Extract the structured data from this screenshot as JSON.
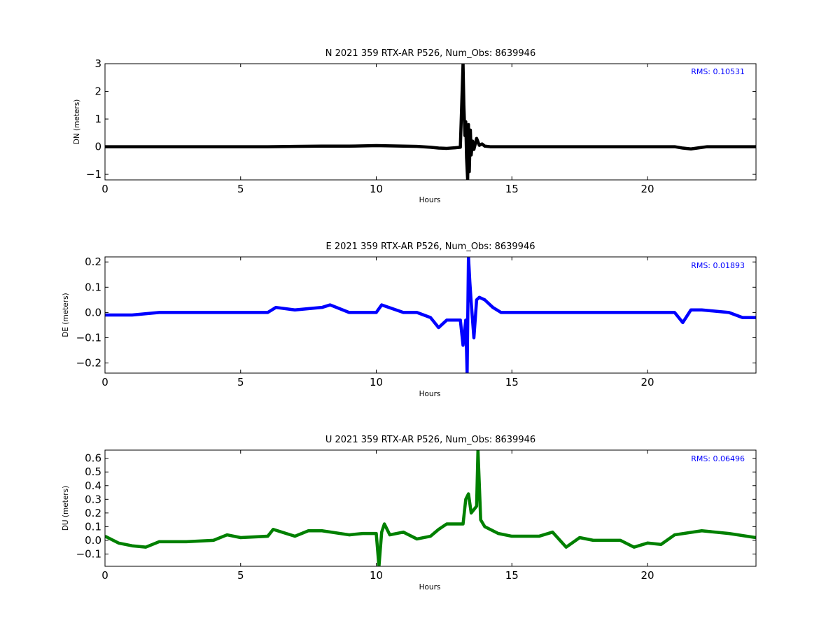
{
  "chart_data": [
    {
      "type": "line",
      "title": "N 2021 359 RTX-AR  P526, Num_Obs: 8639946",
      "xlabel": "Hours",
      "ylabel": "DN (meters)",
      "xlim": [
        0,
        24
      ],
      "ylim": [
        -1.2,
        3.0
      ],
      "xticks": [
        0,
        5,
        10,
        15,
        20
      ],
      "yticks": [
        -1,
        0,
        1,
        2,
        3
      ],
      "grid": false,
      "annotation": "RMS:  0.10531",
      "color": "#000000",
      "series": [
        {
          "x": [
            0,
            1,
            2,
            3,
            4,
            5,
            6,
            7,
            8,
            9,
            10,
            10.5,
            11,
            11.5,
            12,
            12.3,
            12.6,
            12.9,
            13.1,
            13.2,
            13.23,
            13.27,
            13.3,
            13.33,
            13.37,
            13.4,
            13.43,
            13.47,
            13.5,
            13.55,
            13.6,
            13.7,
            13.8,
            13.9,
            14,
            14.2,
            14.5,
            15,
            16,
            17,
            18,
            19,
            20,
            21,
            21.3,
            21.6,
            21.9,
            22.2,
            23,
            24
          ],
          "y": [
            0.0,
            0.0,
            0.0,
            0.0,
            0.0,
            0.0,
            0.0,
            0.01,
            0.02,
            0.02,
            0.04,
            0.03,
            0.02,
            0.01,
            -0.02,
            -0.05,
            -0.06,
            -0.04,
            -0.02,
            3.0,
            1.5,
            0.4,
            0.9,
            -0.4,
            -1.2,
            0.8,
            -0.9,
            0.6,
            -0.3,
            0.2,
            -0.1,
            0.3,
            0.05,
            0.1,
            0.02,
            0.0,
            0.0,
            0.0,
            0.0,
            0.0,
            0.0,
            0.0,
            0.0,
            0.0,
            -0.05,
            -0.08,
            -0.04,
            0.0,
            0.0,
            0.0
          ]
        }
      ]
    },
    {
      "type": "line",
      "title": "E 2021 359 RTX-AR  P526, Num_Obs: 8639946",
      "xlabel": "Hours",
      "ylabel": "DE (meters)",
      "xlim": [
        0,
        24
      ],
      "ylim": [
        -0.24,
        0.22
      ],
      "xticks": [
        0,
        5,
        10,
        15,
        20
      ],
      "yticks": [
        -0.2,
        -0.1,
        0.0,
        0.1,
        0.2
      ],
      "grid": false,
      "annotation": "RMS:  0.01893",
      "color": "#0000ff",
      "series": [
        {
          "x": [
            0,
            1,
            2,
            3,
            4,
            5,
            6,
            6.3,
            7,
            8,
            8.3,
            9,
            10,
            10.2,
            11,
            11.5,
            12,
            12.3,
            12.6,
            12.8,
            13.0,
            13.1,
            13.2,
            13.3,
            13.35,
            13.4,
            13.45,
            13.5,
            13.6,
            13.7,
            13.8,
            14,
            14.3,
            14.6,
            15,
            16,
            17,
            18,
            19,
            20,
            21,
            21.3,
            21.6,
            22,
            23,
            23.5,
            24
          ],
          "y": [
            -0.01,
            -0.01,
            0.0,
            0.0,
            0.0,
            0.0,
            0.0,
            0.02,
            0.01,
            0.02,
            0.03,
            0.0,
            0.0,
            0.03,
            0.0,
            0.0,
            -0.02,
            -0.06,
            -0.03,
            -0.03,
            -0.03,
            -0.03,
            -0.13,
            -0.03,
            -0.24,
            0.22,
            0.12,
            0.04,
            -0.1,
            0.05,
            0.06,
            0.05,
            0.02,
            0.0,
            0.0,
            0.0,
            0.0,
            0.0,
            0.0,
            0.0,
            0.0,
            -0.04,
            0.01,
            0.01,
            0.0,
            -0.02,
            -0.02
          ]
        }
      ]
    },
    {
      "type": "line",
      "title": "U 2021 359 RTX-AR  P526, Num_Obs: 8639946",
      "xlabel": "Hours",
      "ylabel": "DU (meters)",
      "xlim": [
        0,
        24
      ],
      "ylim": [
        -0.19,
        0.66
      ],
      "xticks": [
        0,
        5,
        10,
        15,
        20
      ],
      "yticks": [
        -0.1,
        0.0,
        0.1,
        0.2,
        0.3,
        0.4,
        0.5,
        0.6
      ],
      "grid": false,
      "annotation": "RMS:  0.06496",
      "color": "#008000",
      "series": [
        {
          "x": [
            0,
            0.5,
            1,
            1.5,
            2,
            3,
            4,
            4.5,
            5,
            6,
            6.2,
            7,
            7.5,
            8,
            9,
            9.5,
            10,
            10.1,
            10.2,
            10.3,
            10.5,
            11,
            11.5,
            12,
            12.3,
            12.6,
            13.0,
            13.2,
            13.3,
            13.4,
            13.5,
            13.7,
            13.75,
            13.85,
            14,
            14.5,
            15,
            16,
            16.5,
            17,
            17.5,
            18,
            19,
            19.5,
            20,
            20.5,
            21,
            22,
            23,
            24
          ],
          "y": [
            0.03,
            -0.02,
            -0.04,
            -0.05,
            -0.01,
            -0.01,
            0.0,
            0.04,
            0.02,
            0.03,
            0.08,
            0.03,
            0.07,
            0.07,
            0.04,
            0.05,
            0.05,
            -0.19,
            0.06,
            0.12,
            0.04,
            0.06,
            0.01,
            0.03,
            0.08,
            0.12,
            0.12,
            0.12,
            0.3,
            0.34,
            0.2,
            0.25,
            0.66,
            0.15,
            0.1,
            0.05,
            0.03,
            0.03,
            0.06,
            -0.05,
            0.02,
            0.0,
            0.0,
            -0.05,
            -0.02,
            -0.03,
            0.04,
            0.07,
            0.05,
            0.02
          ]
        }
      ]
    }
  ]
}
